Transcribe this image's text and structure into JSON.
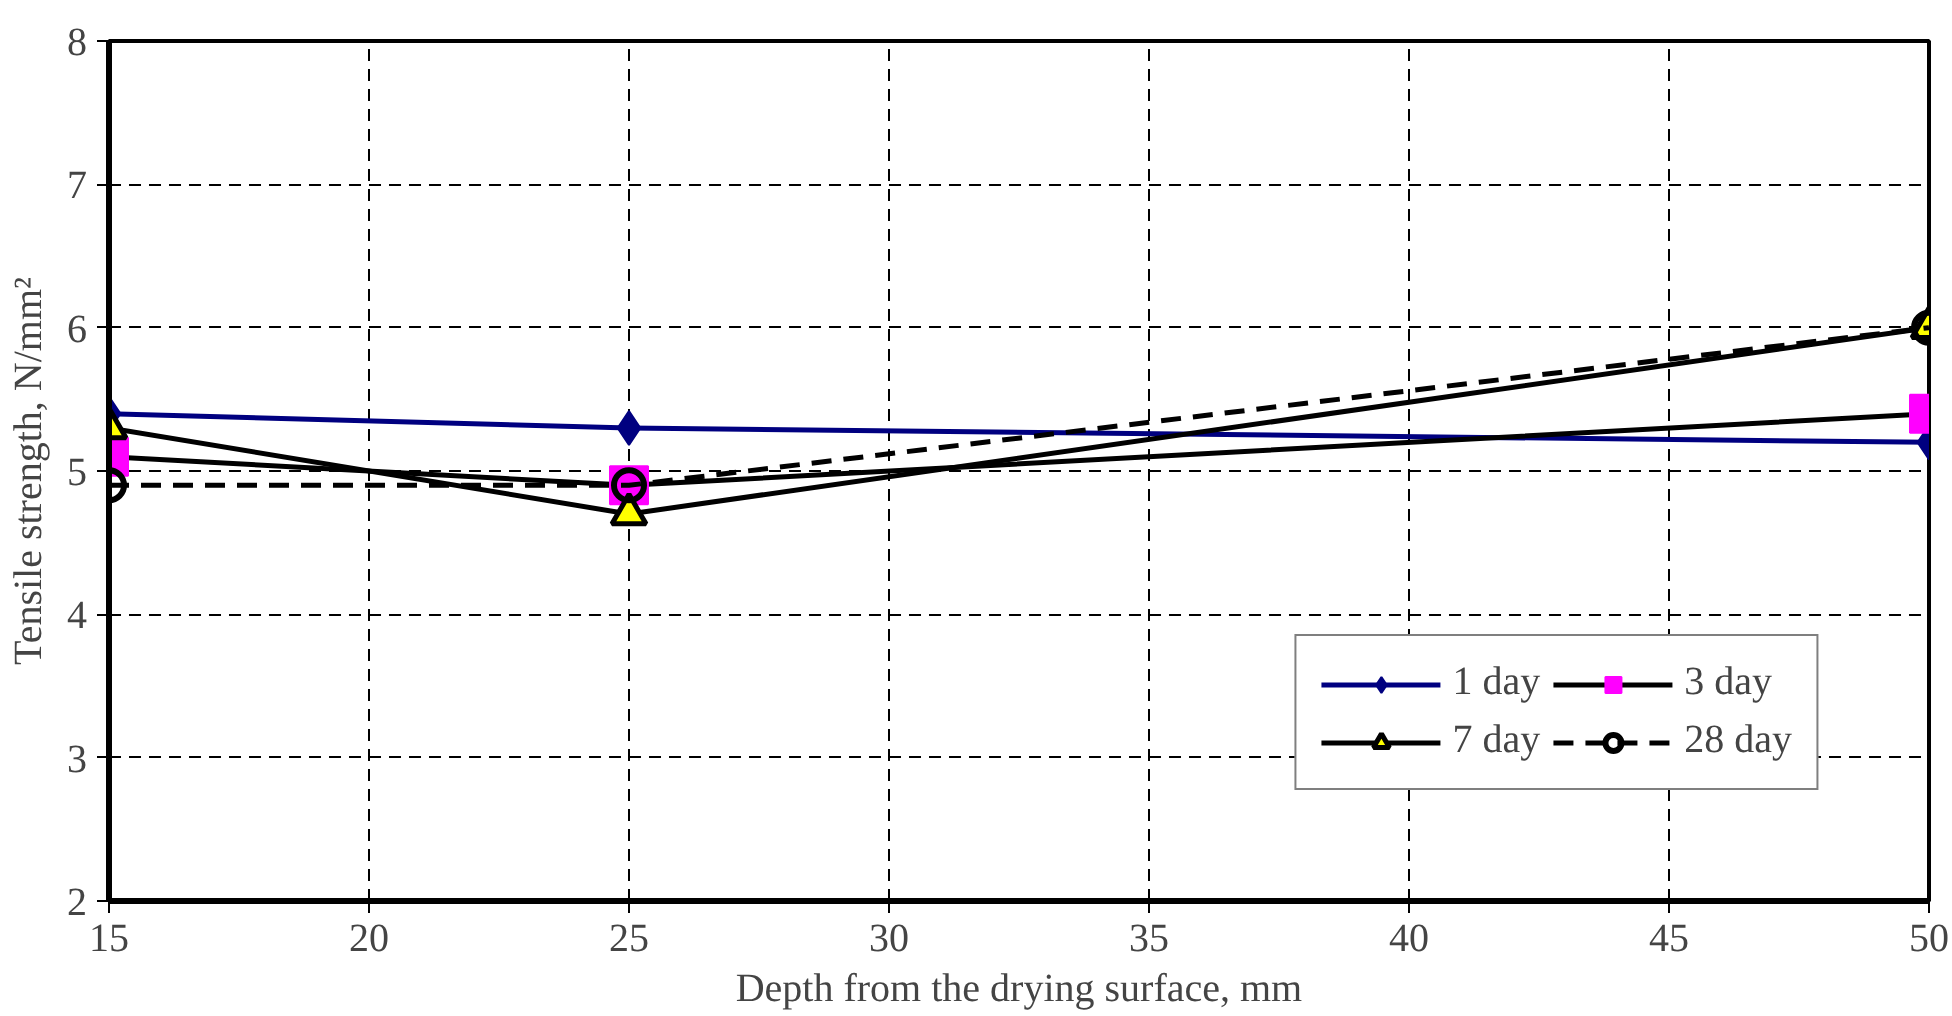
{
  "chart_data": {
    "type": "line",
    "xlabel": "Depth from the drying surface, mm",
    "ylabel": "Tensile strength, N/mm²",
    "x": [
      15,
      25,
      50
    ],
    "series": [
      {
        "name": "1 day",
        "color": "#000080",
        "marker": "diamond",
        "line_style": "solid",
        "values": [
          5.4,
          5.3,
          5.2
        ]
      },
      {
        "name": "3 day",
        "color": "#ff00ff",
        "marker": "square",
        "line_style": "solid",
        "values": [
          5.1,
          4.9,
          5.4
        ]
      },
      {
        "name": "7 day",
        "color": "#ffff00",
        "marker": "triangle",
        "line_style": "solid",
        "values": [
          5.3,
          4.7,
          6.0
        ]
      },
      {
        "name": "28 day",
        "color": "#000000",
        "marker": "circle",
        "line_style": "dashed",
        "values": [
          4.9,
          4.9,
          6.0
        ]
      }
    ],
    "xlim": [
      15,
      50
    ],
    "xticks": [
      15,
      20,
      25,
      30,
      35,
      40,
      45,
      50
    ],
    "ylim": [
      2,
      8
    ],
    "yticks": [
      2,
      3,
      4,
      5,
      6,
      7,
      8
    ],
    "grid": true,
    "legend": "bottom right"
  }
}
